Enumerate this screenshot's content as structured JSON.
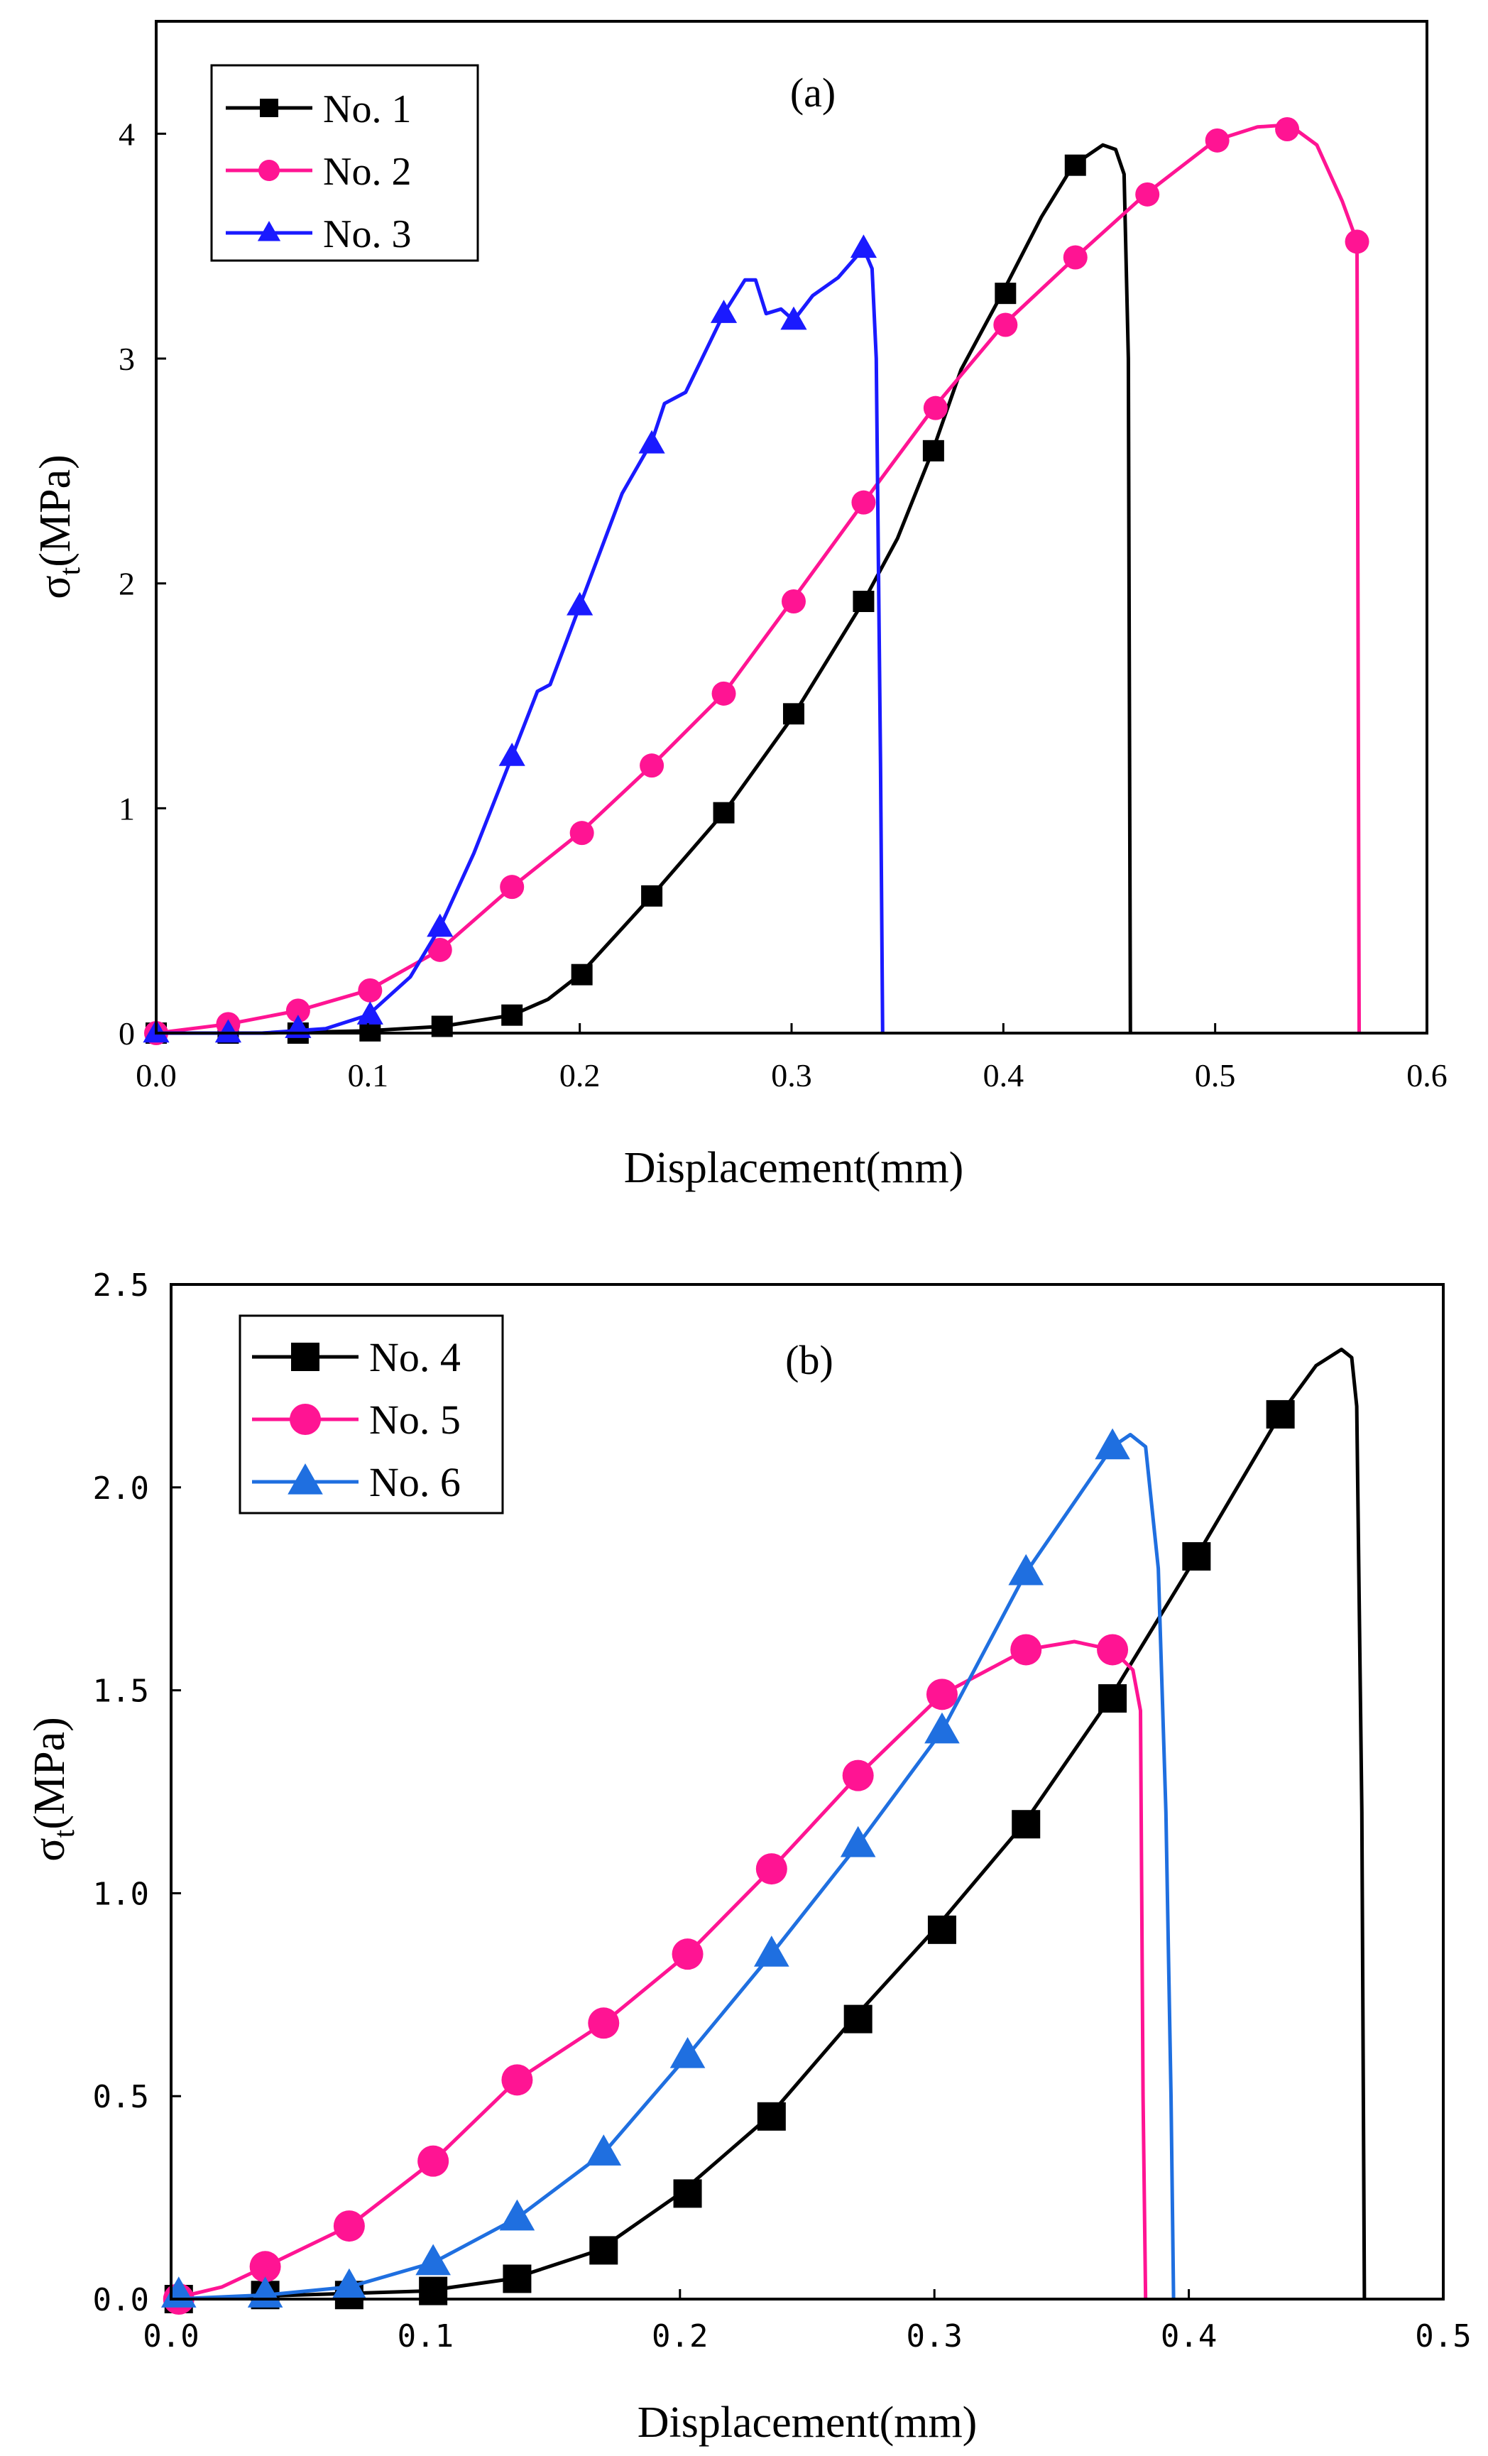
{
  "chart_data": [
    {
      "type": "line",
      "panel_label": "(a)",
      "xlabel": "Displacement(mm)",
      "ylabel_main": "σ",
      "ylabel_sub": "t",
      "ylabel_unit": "(MPa)",
      "xlim": [
        0.0,
        0.6
      ],
      "ylim": [
        0,
        4.5
      ],
      "xticks": [
        0.0,
        0.1,
        0.2,
        0.3,
        0.4,
        0.5,
        0.6
      ],
      "xtick_labels": [
        "0.0",
        "0.1",
        "0.2",
        "0.3",
        "0.4",
        "0.5",
        "0.6"
      ],
      "yticks": [
        0,
        1,
        2,
        3,
        4
      ],
      "ytick_labels": [
        "0",
        "1",
        "2",
        "3",
        "4"
      ],
      "legend_position": "top-left",
      "series": [
        {
          "name": "No. 1",
          "color": "#000000",
          "marker": "square",
          "curve": [
            [
              0.0,
              0.0
            ],
            [
              0.05,
              0.0
            ],
            [
              0.1,
              0.01
            ],
            [
              0.135,
              0.03
            ],
            [
              0.168,
              0.08
            ],
            [
              0.185,
              0.15
            ],
            [
              0.2,
              0.26
            ],
            [
              0.234,
              0.61
            ],
            [
              0.268,
              0.98
            ],
            [
              0.3,
              1.4
            ],
            [
              0.334,
              1.92
            ],
            [
              0.35,
              2.2
            ],
            [
              0.367,
              2.6
            ],
            [
              0.38,
              2.95
            ],
            [
              0.4,
              3.3
            ],
            [
              0.418,
              3.63
            ],
            [
              0.433,
              3.86
            ],
            [
              0.447,
              3.95
            ],
            [
              0.453,
              3.93
            ],
            [
              0.457,
              3.82
            ],
            [
              0.459,
              3.0
            ],
            [
              0.46,
              0.0
            ]
          ],
          "markers": [
            [
              0.0,
              0.0
            ],
            [
              0.034,
              0.0
            ],
            [
              0.067,
              0.0
            ],
            [
              0.101,
              0.01
            ],
            [
              0.135,
              0.03
            ],
            [
              0.168,
              0.08
            ],
            [
              0.201,
              0.26
            ],
            [
              0.234,
              0.61
            ],
            [
              0.268,
              0.98
            ],
            [
              0.301,
              1.42
            ],
            [
              0.334,
              1.92
            ],
            [
              0.367,
              2.59
            ],
            [
              0.401,
              3.29
            ],
            [
              0.434,
              3.86
            ]
          ]
        },
        {
          "name": "No. 2",
          "color": "#ff1493",
          "marker": "circle",
          "curve": [
            [
              0.0,
              0.0
            ],
            [
              0.034,
              0.04
            ],
            [
              0.067,
              0.1
            ],
            [
              0.1,
              0.19
            ],
            [
              0.134,
              0.37
            ],
            [
              0.168,
              0.65
            ],
            [
              0.2,
              0.89
            ],
            [
              0.234,
              1.19
            ],
            [
              0.268,
              1.51
            ],
            [
              0.3,
              1.92
            ],
            [
              0.334,
              2.36
            ],
            [
              0.367,
              2.78
            ],
            [
              0.4,
              3.15
            ],
            [
              0.434,
              3.45
            ],
            [
              0.467,
              3.73
            ],
            [
              0.5,
              3.97
            ],
            [
              0.52,
              4.03
            ],
            [
              0.535,
              4.04
            ],
            [
              0.548,
              3.95
            ],
            [
              0.56,
              3.7
            ],
            [
              0.567,
              3.52
            ],
            [
              0.568,
              0.0
            ]
          ],
          "markers": [
            [
              0.0,
              0.0
            ],
            [
              0.034,
              0.04
            ],
            [
              0.067,
              0.1
            ],
            [
              0.101,
              0.19
            ],
            [
              0.134,
              0.37
            ],
            [
              0.168,
              0.65
            ],
            [
              0.201,
              0.89
            ],
            [
              0.234,
              1.19
            ],
            [
              0.268,
              1.51
            ],
            [
              0.301,
              1.92
            ],
            [
              0.334,
              2.36
            ],
            [
              0.368,
              2.78
            ],
            [
              0.401,
              3.15
            ],
            [
              0.434,
              3.45
            ],
            [
              0.468,
              3.73
            ],
            [
              0.501,
              3.97
            ],
            [
              0.534,
              4.02
            ],
            [
              0.567,
              3.52
            ]
          ]
        },
        {
          "name": "No. 3",
          "color": "#1a1aff",
          "marker": "triangle",
          "curve": [
            [
              0.0,
              0.0
            ],
            [
              0.05,
              0.0
            ],
            [
              0.08,
              0.02
            ],
            [
              0.1,
              0.08
            ],
            [
              0.12,
              0.25
            ],
            [
              0.134,
              0.47
            ],
            [
              0.15,
              0.8
            ],
            [
              0.168,
              1.23
            ],
            [
              0.18,
              1.52
            ],
            [
              0.186,
              1.55
            ],
            [
              0.2,
              1.9
            ],
            [
              0.22,
              2.4
            ],
            [
              0.234,
              2.63
            ],
            [
              0.24,
              2.8
            ],
            [
              0.25,
              2.85
            ],
            [
              0.268,
              3.2
            ],
            [
              0.278,
              3.35
            ],
            [
              0.283,
              3.35
            ],
            [
              0.288,
              3.2
            ],
            [
              0.295,
              3.22
            ],
            [
              0.301,
              3.17
            ],
            [
              0.31,
              3.28
            ],
            [
              0.322,
              3.36
            ],
            [
              0.334,
              3.49
            ],
            [
              0.338,
              3.4
            ],
            [
              0.34,
              3.0
            ],
            [
              0.342,
              1.2
            ],
            [
              0.343,
              0.0
            ]
          ],
          "markers": [
            [
              0.0,
              0.0
            ],
            [
              0.034,
              0.0
            ],
            [
              0.067,
              0.02
            ],
            [
              0.101,
              0.08
            ],
            [
              0.134,
              0.47
            ],
            [
              0.168,
              1.23
            ],
            [
              0.2,
              1.9
            ],
            [
              0.234,
              2.62
            ],
            [
              0.268,
              3.2
            ],
            [
              0.301,
              3.17
            ],
            [
              0.334,
              3.49
            ]
          ]
        }
      ]
    },
    {
      "type": "line",
      "panel_label": "(b)",
      "xlabel": "Displacement(mm)",
      "ylabel_main": "σ",
      "ylabel_sub": "t",
      "ylabel_unit": "(MPa)",
      "xlim": [
        0.0,
        0.5
      ],
      "ylim": [
        0.0,
        2.5
      ],
      "xticks": [
        0.0,
        0.1,
        0.2,
        0.3,
        0.4,
        0.5
      ],
      "xtick_labels": [
        "0.0",
        "0.1",
        "0.2",
        "0.3",
        "0.4",
        "0.5"
      ],
      "yticks": [
        0.0,
        0.5,
        1.0,
        1.5,
        2.0,
        2.5
      ],
      "ytick_labels": [
        "0.0",
        "0.5",
        "1.0",
        "1.5",
        "2.0",
        "2.5"
      ],
      "legend_position": "top-left",
      "series": [
        {
          "name": "No. 4",
          "color": "#000000",
          "marker": "square",
          "curve": [
            [
              0.0,
              0.0
            ],
            [
              0.05,
              0.01
            ],
            [
              0.1,
              0.02
            ],
            [
              0.134,
              0.05
            ],
            [
              0.168,
              0.12
            ],
            [
              0.2,
              0.26
            ],
            [
              0.235,
              0.45
            ],
            [
              0.268,
              0.69
            ],
            [
              0.3,
              0.91
            ],
            [
              0.335,
              1.17
            ],
            [
              0.368,
              1.47
            ],
            [
              0.403,
              1.83
            ],
            [
              0.436,
              2.18
            ],
            [
              0.45,
              2.3
            ],
            [
              0.46,
              2.34
            ],
            [
              0.464,
              2.32
            ],
            [
              0.466,
              2.2
            ],
            [
              0.468,
              1.2
            ],
            [
              0.469,
              0.0
            ]
          ],
          "markers": [
            [
              0.003,
              0.0
            ],
            [
              0.037,
              0.01
            ],
            [
              0.07,
              0.01
            ],
            [
              0.103,
              0.02
            ],
            [
              0.136,
              0.05
            ],
            [
              0.17,
              0.12
            ],
            [
              0.203,
              0.26
            ],
            [
              0.236,
              0.45
            ],
            [
              0.27,
              0.69
            ],
            [
              0.303,
              0.91
            ],
            [
              0.336,
              1.17
            ],
            [
              0.37,
              1.48
            ],
            [
              0.403,
              1.83
            ],
            [
              0.436,
              2.18
            ]
          ]
        },
        {
          "name": "No. 5",
          "color": "#ff1493",
          "marker": "circle",
          "curve": [
            [
              0.0,
              0.0
            ],
            [
              0.02,
              0.03
            ],
            [
              0.037,
              0.08
            ],
            [
              0.07,
              0.18
            ],
            [
              0.103,
              0.34
            ],
            [
              0.136,
              0.54
            ],
            [
              0.17,
              0.68
            ],
            [
              0.203,
              0.85
            ],
            [
              0.236,
              1.06
            ],
            [
              0.27,
              1.29
            ],
            [
              0.303,
              1.49
            ],
            [
              0.336,
              1.6
            ],
            [
              0.355,
              1.62
            ],
            [
              0.37,
              1.6
            ],
            [
              0.378,
              1.55
            ],
            [
              0.381,
              1.45
            ],
            [
              0.382,
              0.5
            ],
            [
              0.383,
              0.0
            ]
          ],
          "markers": [
            [
              0.003,
              0.0
            ],
            [
              0.037,
              0.08
            ],
            [
              0.07,
              0.18
            ],
            [
              0.103,
              0.34
            ],
            [
              0.136,
              0.54
            ],
            [
              0.17,
              0.68
            ],
            [
              0.203,
              0.85
            ],
            [
              0.236,
              1.06
            ],
            [
              0.27,
              1.29
            ],
            [
              0.303,
              1.49
            ],
            [
              0.336,
              1.6
            ],
            [
              0.37,
              1.6
            ]
          ]
        },
        {
          "name": "No. 6",
          "color": "#1f6fe0",
          "marker": "triangle",
          "curve": [
            [
              0.0,
              0.0
            ],
            [
              0.037,
              0.01
            ],
            [
              0.07,
              0.03
            ],
            [
              0.103,
              0.09
            ],
            [
              0.136,
              0.2
            ],
            [
              0.17,
              0.36
            ],
            [
              0.203,
              0.6
            ],
            [
              0.236,
              0.85
            ],
            [
              0.27,
              1.12
            ],
            [
              0.303,
              1.4
            ],
            [
              0.336,
              1.79
            ],
            [
              0.37,
              2.1
            ],
            [
              0.377,
              2.13
            ],
            [
              0.383,
              2.1
            ],
            [
              0.388,
              1.8
            ],
            [
              0.391,
              1.2
            ],
            [
              0.393,
              0.5
            ],
            [
              0.394,
              0.0
            ]
          ],
          "markers": [
            [
              0.003,
              0.01
            ],
            [
              0.037,
              0.01
            ],
            [
              0.07,
              0.03
            ],
            [
              0.103,
              0.09
            ],
            [
              0.136,
              0.2
            ],
            [
              0.17,
              0.36
            ],
            [
              0.203,
              0.6
            ],
            [
              0.236,
              0.85
            ],
            [
              0.27,
              1.12
            ],
            [
              0.303,
              1.4
            ],
            [
              0.336,
              1.79
            ],
            [
              0.37,
              2.1
            ]
          ]
        }
      ]
    }
  ]
}
